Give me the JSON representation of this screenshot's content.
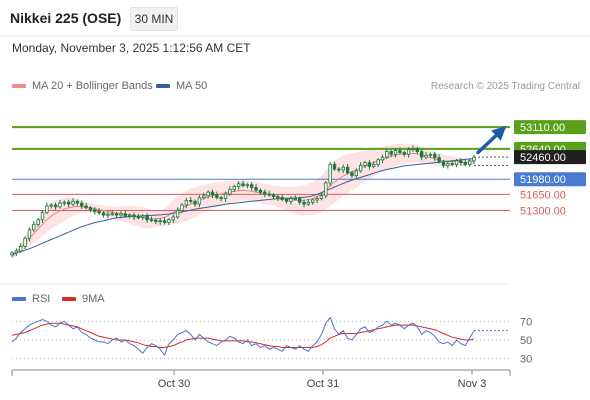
{
  "header": {
    "title": "Nikkei 225 (OSE)",
    "interval": "30 MIN",
    "datetime": "Monday, November 3, 2025 1:12:56 AM CET",
    "credit": "Research © 2025 Trading Central"
  },
  "colors": {
    "candle": "#1a7a3c",
    "bollinger_fill": "#fde0e0",
    "ma20": "#e88585",
    "ma50": "#3b5b9a",
    "resistance": "#5aa01b",
    "pivot": "#4a7bd0",
    "support": "#e05a5a",
    "rsi": "#4a74d0",
    "rsi_ma": "#d62a2a",
    "arrow": "#1c5ca8"
  },
  "chart_data": [
    {
      "type": "candlestick",
      "title": "",
      "legend": [
        {
          "name": "MA 20 + Bollinger Bands",
          "color": "#f08a8a"
        },
        {
          "name": "MA 50",
          "color": "#3b5b9a"
        }
      ],
      "x_tick_labels": [
        "Oct 30",
        "Oct 31",
        "Nov 3"
      ],
      "ylim": [
        49900,
        53700
      ],
      "last_price": "52460.00",
      "levels": [
        {
          "value": 53110,
          "label": "53110.00",
          "kind": "resistance"
        },
        {
          "value": 52640,
          "label": "52640.00",
          "kind": "resistance"
        },
        {
          "value": 51980,
          "label": "51980.00",
          "kind": "pivot"
        },
        {
          "value": 51650,
          "label": "51650.00",
          "kind": "support"
        },
        {
          "value": 51300,
          "label": "51300.00",
          "kind": "support"
        }
      ],
      "series": [
        {
          "name": "MA 20 + Bollinger Bands"
        },
        {
          "name": "MA 50"
        }
      ],
      "close": [
        50380,
        50420,
        50520,
        50700,
        50880,
        51000,
        51100,
        51260,
        51400,
        51420,
        51380,
        51460,
        51480,
        51440,
        51500,
        51460,
        51400,
        51360,
        51320,
        51280,
        51250,
        51200,
        51220,
        51230,
        51200,
        51230,
        51180,
        51200,
        51160,
        51150,
        51180,
        51100,
        51090,
        51060,
        51080,
        51040,
        51100,
        51160,
        51300,
        51420,
        51520,
        51500,
        51440,
        51580,
        51620,
        51700,
        51640,
        51580,
        51560,
        51660,
        51760,
        51820,
        51880,
        51840,
        51860,
        51800,
        51740,
        51700,
        51660,
        51640,
        51600,
        51580,
        51540,
        51500,
        51560,
        51560,
        51480,
        51440,
        51480,
        51530,
        51560,
        51620,
        51900,
        52300,
        52200,
        52180,
        52240,
        52120,
        52060,
        52160,
        52280,
        52340,
        52260,
        52300,
        52400,
        52460,
        52580,
        52520,
        52600,
        52560,
        52520,
        52620,
        52640,
        52580,
        52460,
        52500,
        52520,
        52450,
        52360,
        52280,
        52320,
        52300,
        52380,
        52340,
        52300,
        52380,
        52460
      ],
      "ma20": [
        50300,
        50400,
        50500,
        50600,
        50700,
        50800,
        50900,
        51000,
        51100,
        51180,
        51240,
        51290,
        51330,
        51360,
        51380,
        51390,
        51380,
        51370,
        51360,
        51340,
        51320,
        51300,
        51280,
        51260,
        51240,
        51230,
        51220,
        51210,
        51190,
        51170,
        51150,
        51130,
        51120,
        51120,
        51130,
        51150,
        51200,
        51260,
        51310,
        51360,
        51400,
        51440,
        51480,
        51520,
        51560,
        51590,
        51620,
        51640,
        51660,
        51680,
        51700,
        51720,
        51730,
        51740,
        51730,
        51720,
        51700,
        51680,
        51660,
        51640,
        51620,
        51600,
        51580,
        51560,
        51540,
        51520,
        51520,
        51520,
        51540,
        51560,
        51600,
        51660,
        51750,
        51840,
        51920,
        51990,
        52050,
        52100,
        52140,
        52180,
        52220,
        52260,
        52300,
        52340,
        52380,
        52420,
        52450,
        52480,
        52500,
        52520,
        52530,
        52540,
        52540,
        52530,
        52510,
        52480,
        52450,
        52420,
        52400,
        52380,
        52370,
        52360,
        52360,
        52350,
        52350,
        52350,
        52360
      ],
      "ma50": [
        50350,
        50380,
        50410,
        50440,
        50470,
        50510,
        50550,
        50590,
        50630,
        50670,
        50710,
        50750,
        50790,
        50830,
        50870,
        50910,
        50950,
        50980,
        51010,
        51040,
        51060,
        51080,
        51100,
        51120,
        51140,
        51150,
        51160,
        51170,
        51175,
        51180,
        51185,
        51190,
        51195,
        51200,
        51205,
        51215,
        51225,
        51240,
        51255,
        51270,
        51290,
        51310,
        51330,
        51345,
        51360,
        51375,
        51390,
        51405,
        51420,
        51435,
        51450,
        51460,
        51470,
        51480,
        51490,
        51500,
        51510,
        51520,
        51530,
        51540,
        51550,
        51555,
        51560,
        51565,
        51570,
        51575,
        51580,
        51590,
        51600,
        51620,
        51650,
        51690,
        51730,
        51770,
        51810,
        51850,
        51890,
        51930,
        51960,
        51990,
        52020,
        52050,
        52080,
        52110,
        52140,
        52170,
        52190,
        52210,
        52230,
        52250,
        52270,
        52280,
        52290,
        52300,
        52310,
        52320,
        52330,
        52340,
        52350,
        52360,
        52370,
        52380,
        52390,
        52400,
        52410,
        52420,
        52430
      ],
      "band_width": [
        60,
        80,
        100,
        140,
        180,
        200,
        230,
        250,
        270,
        280,
        280,
        270,
        250,
        220,
        190,
        160,
        130,
        110,
        100,
        100,
        100,
        110,
        120,
        130,
        140,
        160,
        180,
        200,
        210,
        220,
        230,
        220,
        200,
        180,
        180,
        200,
        220,
        260,
        290,
        310,
        330,
        330,
        320,
        310,
        300,
        290,
        280,
        270,
        260,
        250,
        240,
        230,
        220,
        220,
        220,
        220,
        220,
        220,
        220,
        220,
        220,
        230,
        240,
        250,
        270,
        300,
        320,
        330,
        340,
        360,
        380,
        400,
        420,
        440,
        450,
        450,
        440,
        420,
        400,
        380,
        360,
        340,
        320,
        300,
        280,
        270,
        260,
        250,
        240,
        230,
        220,
        210,
        200,
        190,
        180,
        170,
        160,
        150,
        140,
        130,
        120,
        110,
        100,
        90,
        80,
        70,
        60
      ]
    },
    {
      "type": "line",
      "title": "",
      "legend": [
        {
          "name": "RSI",
          "color": "#4a74d0"
        },
        {
          "name": "9MA",
          "color": "#d62a2a"
        }
      ],
      "ylim": [
        20,
        80
      ],
      "y_ticks": [
        70,
        50,
        30
      ],
      "series": [
        {
          "name": "RSI",
          "values": [
            48,
            52,
            58,
            62,
            66,
            68,
            70,
            72,
            70,
            66,
            64,
            68,
            70,
            66,
            62,
            64,
            58,
            56,
            52,
            50,
            48,
            48,
            46,
            50,
            52,
            48,
            50,
            46,
            44,
            40,
            36,
            42,
            46,
            44,
            40,
            34,
            46,
            50,
            56,
            58,
            60,
            56,
            50,
            56,
            52,
            48,
            46,
            44,
            48,
            50,
            54,
            52,
            48,
            46,
            50,
            44,
            46,
            42,
            44,
            40,
            42,
            40,
            38,
            44,
            42,
            40,
            44,
            40,
            38,
            44,
            48,
            56,
            68,
            74,
            62,
            56,
            60,
            52,
            50,
            56,
            62,
            64,
            58,
            60,
            64,
            66,
            70,
            66,
            68,
            66,
            62,
            66,
            68,
            64,
            56,
            60,
            58,
            54,
            48,
            46,
            48,
            44,
            50,
            46,
            44,
            52,
            60
          ]
        },
        {
          "name": "9MA",
          "values": [
            55,
            56,
            57,
            58,
            60,
            62,
            64,
            66,
            67,
            68,
            68,
            68,
            67,
            66,
            65,
            64,
            62,
            60,
            58,
            56,
            54,
            53,
            52,
            51,
            50,
            50,
            50,
            49,
            48,
            47,
            45,
            44,
            43,
            43,
            42,
            42,
            43,
            44,
            46,
            48,
            50,
            51,
            52,
            52,
            52,
            52,
            51,
            50,
            49,
            49,
            49,
            49,
            49,
            49,
            48,
            48,
            47,
            46,
            45,
            44,
            43,
            43,
            42,
            42,
            42,
            42,
            42,
            42,
            42,
            42,
            43,
            45,
            48,
            52,
            54,
            56,
            57,
            57,
            57,
            57,
            58,
            59,
            60,
            61,
            62,
            63,
            64,
            65,
            66,
            66,
            66,
            66,
            66,
            65,
            64,
            63,
            62,
            61,
            59,
            57,
            55,
            53,
            52,
            51,
            50,
            50,
            51
          ]
        }
      ]
    }
  ]
}
